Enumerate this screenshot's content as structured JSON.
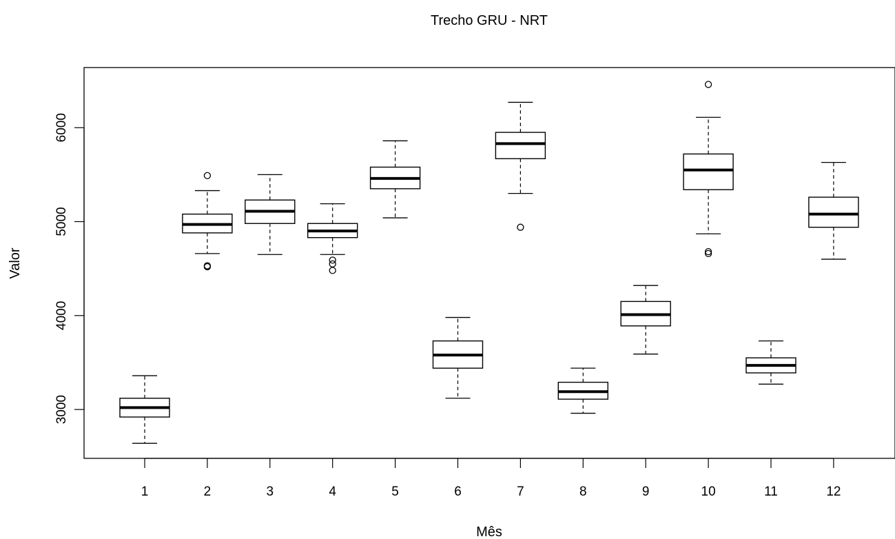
{
  "chart_data": {
    "type": "boxplot",
    "title": "Trecho GRU - NRT",
    "xlabel": "Mês",
    "ylabel": "Valor",
    "categories": [
      "1",
      "2",
      "3",
      "4",
      "5",
      "6",
      "7",
      "8",
      "9",
      "10",
      "11",
      "12"
    ],
    "y_ticks": [
      3000,
      4000,
      5000,
      6000
    ],
    "y_tick_labels": [
      "3000",
      "4000",
      "5000",
      "6000"
    ],
    "ylim": [
      2480,
      6640
    ],
    "grid": false,
    "boxes": [
      {
        "category": "1",
        "whisker_low": 2640,
        "q1": 2920,
        "median": 3020,
        "q3": 3120,
        "whisker_high": 3360,
        "outliers": []
      },
      {
        "category": "2",
        "whisker_low": 4660,
        "q1": 4880,
        "median": 4970,
        "q3": 5080,
        "whisker_high": 5330,
        "outliers": [
          5490,
          4530,
          4520
        ]
      },
      {
        "category": "3",
        "whisker_low": 4650,
        "q1": 4980,
        "median": 5110,
        "q3": 5230,
        "whisker_high": 5500,
        "outliers": []
      },
      {
        "category": "4",
        "whisker_low": 4650,
        "q1": 4830,
        "median": 4900,
        "q3": 4980,
        "whisker_high": 5190,
        "outliers": [
          4590,
          4550,
          4480
        ]
      },
      {
        "category": "5",
        "whisker_low": 5040,
        "q1": 5350,
        "median": 5460,
        "q3": 5580,
        "whisker_high": 5860,
        "outliers": []
      },
      {
        "category": "6",
        "whisker_low": 3120,
        "q1": 3440,
        "median": 3580,
        "q3": 3730,
        "whisker_high": 3980,
        "outliers": []
      },
      {
        "category": "7",
        "whisker_low": 5300,
        "q1": 5670,
        "median": 5830,
        "q3": 5950,
        "whisker_high": 6270,
        "outliers": [
          4940
        ]
      },
      {
        "category": "8",
        "whisker_low": 2960,
        "q1": 3110,
        "median": 3190,
        "q3": 3290,
        "whisker_high": 3440,
        "outliers": []
      },
      {
        "category": "9",
        "whisker_low": 3590,
        "q1": 3890,
        "median": 4010,
        "q3": 4150,
        "whisker_high": 4320,
        "outliers": []
      },
      {
        "category": "10",
        "whisker_low": 4870,
        "q1": 5340,
        "median": 5550,
        "q3": 5720,
        "whisker_high": 6110,
        "outliers": [
          6460,
          4680,
          4660
        ]
      },
      {
        "category": "11",
        "whisker_low": 3270,
        "q1": 3390,
        "median": 3470,
        "q3": 3550,
        "whisker_high": 3730,
        "outliers": []
      },
      {
        "category": "12",
        "whisker_low": 4600,
        "q1": 4940,
        "median": 5080,
        "q3": 5260,
        "whisker_high": 5630,
        "outliers": []
      }
    ]
  }
}
